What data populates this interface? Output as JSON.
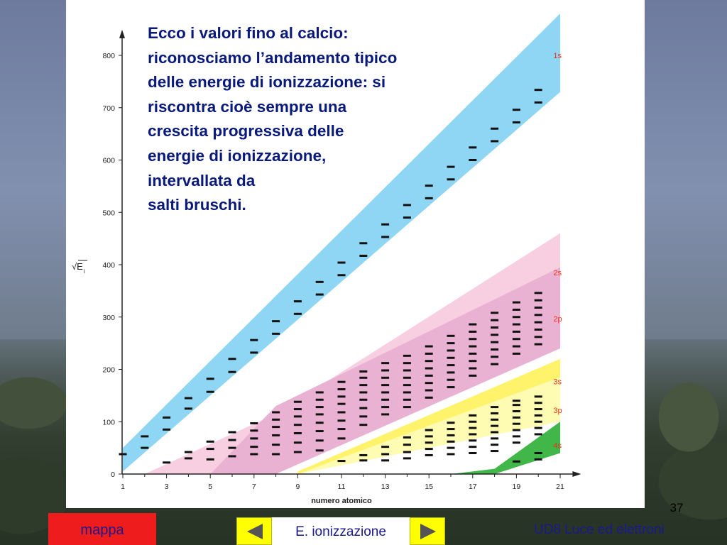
{
  "slide": {
    "caption_lines": [
      "Ecco i valori fino al calcio:",
      "riconosciamo l’andamento tipico",
      "delle energie di ionizzazione: si",
      "riscontra cioè sempre una",
      "crescita progressiva delle",
      "energie di ionizzazione,",
      "intervallata da",
      "salti bruschi."
    ],
    "slide_number": "37",
    "footer": {
      "map_button_label": "mappa",
      "nav_label": "E. ionizzazione",
      "prev_icon": "triangle-left-icon",
      "next_icon": "triangle-right-icon",
      "course_title": "UD8 Luce ed elettroni"
    },
    "colors": {
      "map_button": "#ee1c1c",
      "nav_buttons": "#ffff00",
      "text_blue": "#1a1a8c",
      "band_1s": "#8fd6f4",
      "band_2s": "#f8cfe0",
      "band_2p": "#eab2d2",
      "band_3s": "#fef36a",
      "band_3p": "#fefbb2",
      "band_4s": "#41b649",
      "shell_label": "#e8331c"
    }
  },
  "chart_data": {
    "type": "scatter",
    "xlabel": "numero atomico",
    "ylabel": "√E",
    "ylabel_subscript": "i",
    "xlim": [
      1,
      21.5
    ],
    "ylim": [
      0,
      830
    ],
    "x_ticks": [
      1,
      3,
      5,
      7,
      9,
      11,
      13,
      15,
      17,
      19,
      21
    ],
    "y_ticks": [
      0,
      100,
      200,
      300,
      400,
      500,
      600,
      700,
      800
    ],
    "bands": [
      {
        "name": "1s",
        "label_y": 800,
        "edges": [
          [
            1,
            5,
            50
          ],
          [
            21,
            730,
            880
          ]
        ]
      },
      {
        "name": "2s",
        "label_y": 385,
        "edges": [
          [
            2,
            0,
            0
          ],
          [
            8,
            0,
            115
          ],
          [
            21,
            305,
            460
          ]
        ]
      },
      {
        "name": "2p",
        "label_y": 297,
        "edges": [
          [
            5,
            0,
            0
          ],
          [
            8,
            0,
            130
          ],
          [
            21,
            240,
            395
          ]
        ]
      },
      {
        "name": "3s",
        "label_y": 177,
        "edges": [
          [
            9,
            0,
            5
          ],
          [
            21,
            155,
            220
          ]
        ]
      },
      {
        "name": "3p",
        "label_y": 122,
        "edges": [
          [
            9,
            0,
            0
          ],
          [
            21,
            100,
            185
          ]
        ]
      },
      {
        "name": "4s",
        "label_y": 55,
        "edges": [
          [
            16,
            0,
            0
          ],
          [
            18,
            0,
            10
          ],
          [
            21,
            40,
            100
          ]
        ]
      }
    ],
    "points": [
      {
        "x": 1,
        "y": [
          38
        ]
      },
      {
        "x": 2,
        "y": [
          50,
          72
        ]
      },
      {
        "x": 3,
        "y": [
          22,
          85,
          108
        ]
      },
      {
        "x": 4,
        "y": [
          30,
          42,
          125,
          145
        ]
      },
      {
        "x": 5,
        "y": [
          28,
          48,
          62,
          157,
          182
        ]
      },
      {
        "x": 6,
        "y": [
          34,
          50,
          65,
          80,
          195,
          220
        ]
      },
      {
        "x": 7,
        "y": [
          38,
          52,
          68,
          83,
          97,
          232,
          256
        ]
      },
      {
        "x": 8,
        "y": [
          38,
          56,
          74,
          90,
          104,
          118,
          268,
          292
        ]
      },
      {
        "x": 9,
        "y": [
          42,
          60,
          78,
          94,
          110,
          124,
          138,
          306,
          330
        ]
      },
      {
        "x": 10,
        "y": [
          45,
          64,
          82,
          98,
          114,
          128,
          142,
          156,
          343,
          367
        ]
      },
      {
        "x": 11,
        "y": [
          25,
          68,
          86,
          102,
          118,
          134,
          148,
          162,
          176,
          380,
          404
        ]
      },
      {
        "x": 12,
        "y": [
          26,
          36,
          94,
          110,
          126,
          142,
          156,
          170,
          184,
          196,
          417,
          441
        ]
      },
      {
        "x": 13,
        "y": [
          26,
          38,
          52,
          114,
          128,
          142,
          156,
          170,
          184,
          198,
          212,
          453,
          477
        ]
      },
      {
        "x": 14,
        "y": [
          30,
          42,
          56,
          70,
          128,
          142,
          156,
          170,
          184,
          198,
          212,
          226,
          490,
          514
        ]
      },
      {
        "x": 15,
        "y": [
          36,
          48,
          60,
          72,
          84,
          146,
          160,
          174,
          188,
          202,
          216,
          230,
          244,
          527,
          551
        ]
      },
      {
        "x": 16,
        "y": [
          38,
          50,
          62,
          74,
          86,
          98,
          166,
          180,
          194,
          208,
          222,
          236,
          250,
          264,
          563,
          587
        ]
      },
      {
        "x": 17,
        "y": [
          40,
          52,
          64,
          76,
          88,
          100,
          112,
          188,
          202,
          216,
          230,
          244,
          258,
          272,
          286,
          600,
          624
        ]
      },
      {
        "x": 18,
        "y": [
          44,
          56,
          68,
          80,
          92,
          104,
          116,
          128,
          210,
          224,
          238,
          252,
          266,
          280,
          294,
          308,
          636,
          660
        ]
      },
      {
        "x": 19,
        "y": [
          24,
          60,
          72,
          84,
          96,
          108,
          120,
          132,
          140,
          230,
          244,
          258,
          272,
          286,
          300,
          314,
          328,
          672,
          696
        ]
      },
      {
        "x": 20,
        "y": [
          28,
          40,
          76,
          88,
          100,
          112,
          124,
          136,
          148,
          248,
          262,
          276,
          290,
          304,
          318,
          332,
          346,
          710,
          734
        ]
      }
    ]
  }
}
